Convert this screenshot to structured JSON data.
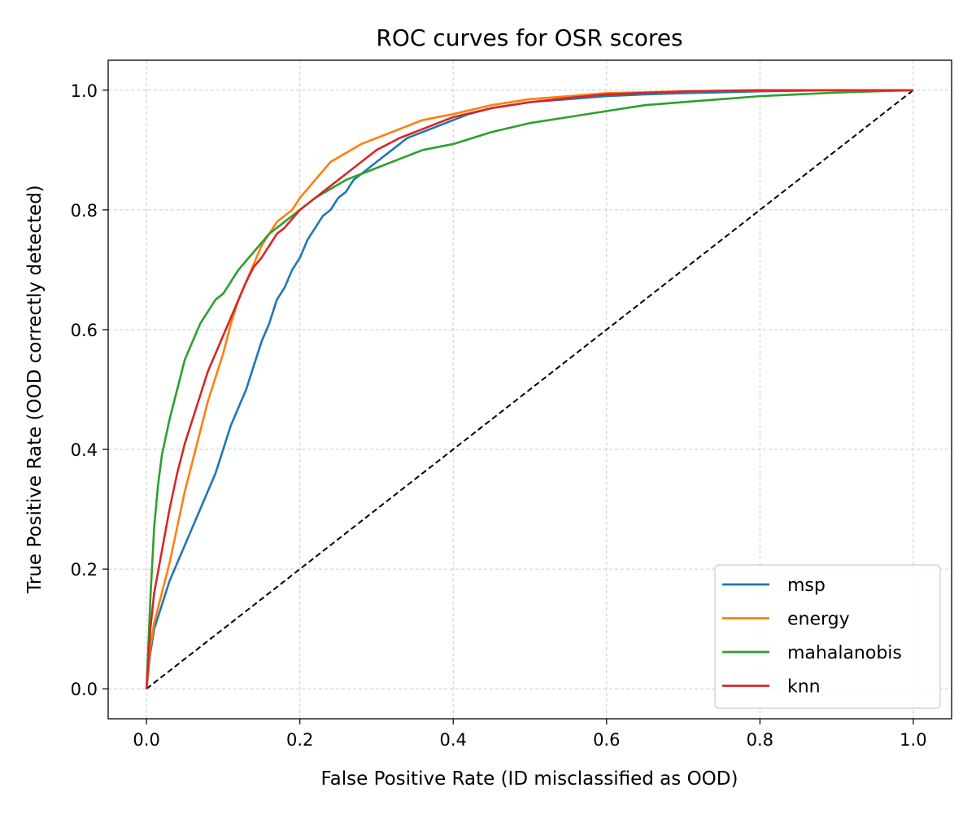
{
  "chart_data": {
    "type": "line",
    "title": "ROC curves for OSR scores",
    "xlabel": "False Positive Rate (ID misclassified as OOD)",
    "ylabel": "True Positive Rate (OOD correctly detected)",
    "xlim": [
      -0.05,
      1.05
    ],
    "ylim": [
      -0.05,
      1.05
    ],
    "xticks": [
      0.0,
      0.2,
      0.4,
      0.6,
      0.8,
      1.0
    ],
    "yticks": [
      0.0,
      0.2,
      0.4,
      0.6,
      0.8,
      1.0
    ],
    "xtick_labels": [
      "0.0",
      "0.2",
      "0.4",
      "0.6",
      "0.8",
      "1.0"
    ],
    "ytick_labels": [
      "0.0",
      "0.2",
      "0.4",
      "0.6",
      "0.8",
      "1.0"
    ],
    "grid": true,
    "legend_position": "lower-right",
    "series": [
      {
        "name": "msp",
        "color": "#1f77b4",
        "x": [
          0,
          0.005,
          0.01,
          0.02,
          0.03,
          0.04,
          0.05,
          0.06,
          0.07,
          0.08,
          0.09,
          0.1,
          0.11,
          0.12,
          0.13,
          0.14,
          0.15,
          0.16,
          0.17,
          0.18,
          0.19,
          0.2,
          0.21,
          0.22,
          0.23,
          0.24,
          0.25,
          0.26,
          0.27,
          0.28,
          0.3,
          0.32,
          0.34,
          0.36,
          0.38,
          0.4,
          0.42,
          0.45,
          0.5,
          0.55,
          0.6,
          0.65,
          0.7,
          0.8,
          0.9,
          1.0
        ],
        "y": [
          0,
          0.06,
          0.1,
          0.14,
          0.18,
          0.21,
          0.24,
          0.27,
          0.3,
          0.33,
          0.36,
          0.4,
          0.44,
          0.47,
          0.5,
          0.54,
          0.58,
          0.61,
          0.65,
          0.67,
          0.7,
          0.72,
          0.75,
          0.77,
          0.79,
          0.8,
          0.82,
          0.83,
          0.85,
          0.86,
          0.88,
          0.9,
          0.92,
          0.93,
          0.94,
          0.95,
          0.96,
          0.97,
          0.98,
          0.985,
          0.99,
          0.993,
          0.995,
          0.998,
          1.0,
          1.0
        ]
      },
      {
        "name": "energy",
        "color": "#ff7f0e",
        "x": [
          0,
          0.005,
          0.01,
          0.02,
          0.03,
          0.04,
          0.05,
          0.06,
          0.07,
          0.08,
          0.09,
          0.1,
          0.11,
          0.12,
          0.13,
          0.14,
          0.15,
          0.16,
          0.17,
          0.18,
          0.19,
          0.2,
          0.22,
          0.24,
          0.26,
          0.28,
          0.3,
          0.33,
          0.36,
          0.4,
          0.45,
          0.5,
          0.55,
          0.6,
          0.7,
          0.8,
          1.0
        ],
        "y": [
          0,
          0.07,
          0.11,
          0.16,
          0.21,
          0.27,
          0.33,
          0.38,
          0.43,
          0.48,
          0.52,
          0.56,
          0.61,
          0.65,
          0.68,
          0.71,
          0.74,
          0.76,
          0.78,
          0.79,
          0.8,
          0.82,
          0.85,
          0.88,
          0.895,
          0.91,
          0.92,
          0.935,
          0.95,
          0.96,
          0.975,
          0.985,
          0.99,
          0.995,
          0.998,
          1.0,
          1.0
        ]
      },
      {
        "name": "mahalanobis",
        "color": "#2ca02c",
        "x": [
          0,
          0.005,
          0.01,
          0.015,
          0.02,
          0.03,
          0.04,
          0.05,
          0.06,
          0.07,
          0.08,
          0.09,
          0.1,
          0.11,
          0.12,
          0.13,
          0.14,
          0.16,
          0.18,
          0.2,
          0.22,
          0.24,
          0.26,
          0.28,
          0.3,
          0.33,
          0.36,
          0.4,
          0.45,
          0.5,
          0.55,
          0.6,
          0.65,
          0.7,
          0.75,
          0.8,
          0.85,
          0.9,
          0.95,
          1.0
        ],
        "y": [
          0,
          0.15,
          0.27,
          0.34,
          0.39,
          0.45,
          0.5,
          0.55,
          0.58,
          0.61,
          0.63,
          0.65,
          0.66,
          0.68,
          0.7,
          0.715,
          0.73,
          0.76,
          0.78,
          0.8,
          0.82,
          0.835,
          0.85,
          0.86,
          0.87,
          0.885,
          0.9,
          0.91,
          0.93,
          0.945,
          0.955,
          0.965,
          0.975,
          0.98,
          0.985,
          0.99,
          0.993,
          0.996,
          0.998,
          1.0
        ]
      },
      {
        "name": "knn",
        "color": "#d62728",
        "x": [
          0,
          0.005,
          0.01,
          0.02,
          0.03,
          0.04,
          0.05,
          0.06,
          0.07,
          0.08,
          0.09,
          0.1,
          0.11,
          0.12,
          0.13,
          0.14,
          0.15,
          0.16,
          0.17,
          0.18,
          0.2,
          0.22,
          0.24,
          0.26,
          0.28,
          0.3,
          0.33,
          0.36,
          0.4,
          0.45,
          0.5,
          0.55,
          0.6,
          0.7,
          0.8,
          1.0
        ],
        "y": [
          0,
          0.1,
          0.16,
          0.23,
          0.3,
          0.36,
          0.41,
          0.45,
          0.49,
          0.53,
          0.56,
          0.59,
          0.62,
          0.65,
          0.68,
          0.705,
          0.72,
          0.74,
          0.76,
          0.77,
          0.8,
          0.82,
          0.84,
          0.86,
          0.88,
          0.9,
          0.92,
          0.935,
          0.955,
          0.97,
          0.98,
          0.987,
          0.993,
          0.998,
          1.0,
          1.0
        ]
      }
    ],
    "reference_line": {
      "x": [
        0,
        1
      ],
      "y": [
        0,
        1
      ],
      "color": "#000000",
      "style": "dashed"
    }
  }
}
